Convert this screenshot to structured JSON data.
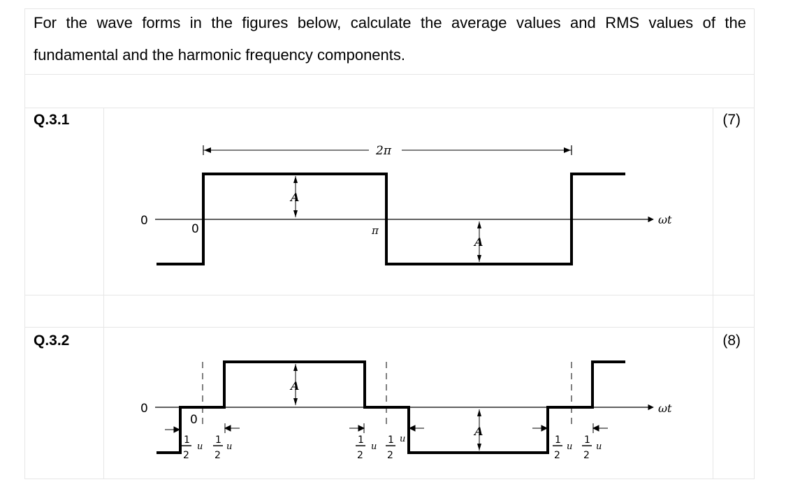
{
  "intro": {
    "line1": "For the wave forms in the figures below, calculate the average values and RMS values of the",
    "line2": "fundamental and the harmonic frequency components."
  },
  "questions": [
    {
      "label": "Q.3.1",
      "marks": "(7)",
      "figure": {
        "zero_axis": "0",
        "zero_origin": "0",
        "period": "2π",
        "pi": "π",
        "amp_top": "A",
        "amp_bottom": "A",
        "axis": "ωt"
      }
    },
    {
      "label": "Q.3.2",
      "marks": "(8)",
      "figure": {
        "zero_axis": "0",
        "zero_origin": "0",
        "amp_top": "A",
        "amp_bottom": "A",
        "axis": "ωt",
        "half": "1",
        "half_den": "2",
        "u": "u"
      }
    }
  ]
}
